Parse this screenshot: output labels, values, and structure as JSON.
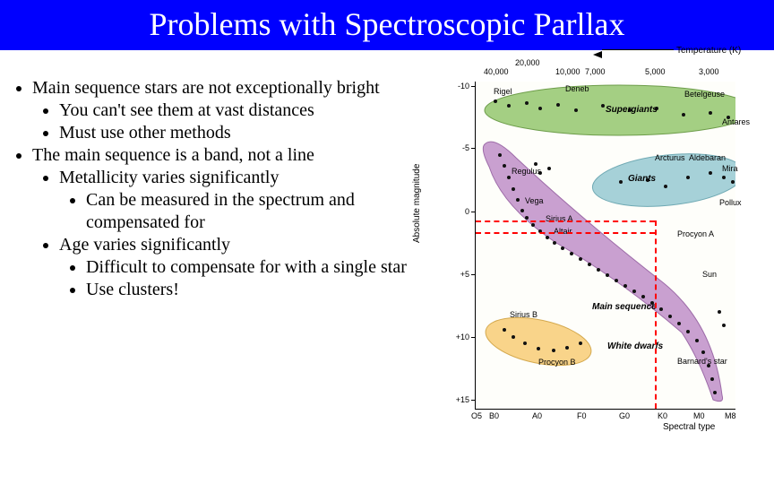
{
  "title": "Problems with Spectroscopic Parllax",
  "bullets": {
    "l1a": "Main sequence stars are not exceptionally bright",
    "l2a": "You can't see them at vast distances",
    "l2b": "Must use other methods",
    "l1b": "The main sequence is a band, not a line",
    "l2c": "Metallicity varies significantly",
    "l3a": "Can be measured in the spectrum and compensated for",
    "l2d": "Age varies significantly",
    "l3b": "Difficult to compensate for with a single star",
    "l3c": "Use clusters!"
  },
  "chart": {
    "top_axis_label": "Temperature (K)",
    "x_axis_label": "Spectral type",
    "y_axis_label": "Absolute magnitude",
    "temps": [
      "40,000",
      "20,000",
      "10,000",
      "7,000",
      "5,000",
      "3,000"
    ],
    "temps_x": [
      50,
      85,
      130,
      163,
      230,
      290
    ],
    "spectral": [
      "O5",
      "B0",
      "A0",
      "F0",
      "G0",
      "K0",
      "M0",
      "M8"
    ],
    "spectral_x": [
      42,
      62,
      110,
      160,
      207,
      250,
      290,
      325
    ],
    "y_ticks": [
      "-10",
      "-5",
      "0",
      "+5",
      "+10",
      "+15"
    ],
    "y_tick_pos": [
      45,
      114,
      185,
      255,
      325,
      395
    ],
    "regions": {
      "supergiants": {
        "label": "Supergiants",
        "color": "#a4cf83",
        "border": "#6d9d4a"
      },
      "giants": {
        "label": "Giants",
        "color": "#a6d1d8",
        "border": "#6fa9b3"
      },
      "mainseq": {
        "label": "Main sequence",
        "color": "#c9a0d0",
        "border": "#9d6ba8"
      },
      "whitedwarfs": {
        "label": "White dwarfs",
        "color": "#f9d48a",
        "border": "#d4a94e"
      }
    },
    "stars": {
      "rigel": "Rigel",
      "deneb": "Deneb",
      "betelgeuse": "Betelgeuse",
      "antares": "Antares",
      "regulus": "Regulus",
      "vega": "Vega",
      "siriusa": "Sirius A",
      "altair": "Altair",
      "arcturus": "Arcturus",
      "aldebaran": "Aldebaran",
      "mira": "Mira",
      "pollux": "Pollux",
      "procyona": "Procyon A",
      "sun": "Sun",
      "siriusb": "Sirius B",
      "procyonb": "Procyon B",
      "barnard": "Barnard's star"
    },
    "colors": {
      "title_bg": "#0000ff",
      "dash": "#ff0000",
      "chart_bg": "#fefefa"
    },
    "dots": [
      [
        20,
        20
      ],
      [
        35,
        25
      ],
      [
        55,
        22
      ],
      [
        70,
        28
      ],
      [
        90,
        24
      ],
      [
        110,
        30
      ],
      [
        140,
        25
      ],
      [
        170,
        30
      ],
      [
        200,
        28
      ],
      [
        230,
        35
      ],
      [
        260,
        33
      ],
      [
        280,
        38
      ],
      [
        65,
        90
      ],
      [
        70,
        100
      ],
      [
        80,
        95
      ],
      [
        160,
        110
      ],
      [
        190,
        108
      ],
      [
        210,
        115
      ],
      [
        235,
        105
      ],
      [
        260,
        100
      ],
      [
        275,
        105
      ],
      [
        285,
        110
      ],
      [
        25,
        80
      ],
      [
        30,
        92
      ],
      [
        35,
        105
      ],
      [
        40,
        118
      ],
      [
        45,
        130
      ],
      [
        50,
        142
      ],
      [
        55,
        150
      ],
      [
        62,
        158
      ],
      [
        70,
        165
      ],
      [
        78,
        172
      ],
      [
        86,
        178
      ],
      [
        95,
        184
      ],
      [
        105,
        190
      ],
      [
        115,
        196
      ],
      [
        125,
        202
      ],
      [
        135,
        208
      ],
      [
        145,
        214
      ],
      [
        155,
        220
      ],
      [
        165,
        226
      ],
      [
        175,
        232
      ],
      [
        185,
        238
      ],
      [
        195,
        245
      ],
      [
        205,
        252
      ],
      [
        215,
        260
      ],
      [
        225,
        268
      ],
      [
        235,
        277
      ],
      [
        245,
        287
      ],
      [
        252,
        300
      ],
      [
        258,
        315
      ],
      [
        262,
        330
      ],
      [
        265,
        345
      ],
      [
        30,
        275
      ],
      [
        40,
        283
      ],
      [
        53,
        290
      ],
      [
        68,
        296
      ],
      [
        85,
        298
      ],
      [
        100,
        295
      ],
      [
        115,
        290
      ],
      [
        270,
        255
      ],
      [
        275,
        270
      ]
    ]
  }
}
